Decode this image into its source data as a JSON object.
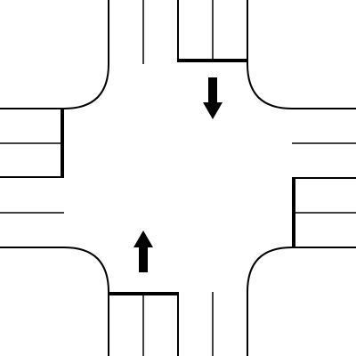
{
  "diagram": {
    "type": "four-way intersection",
    "colors": {
      "background": "#ffffff",
      "line": "#000000"
    },
    "approaches": [
      {
        "id": "north",
        "lanes": 2,
        "stop_line": true,
        "arrow": "down"
      },
      {
        "id": "south",
        "lanes": 2,
        "stop_line": true,
        "arrow": "up"
      },
      {
        "id": "west",
        "lanes": 2,
        "stop_line": true,
        "arrow": null
      },
      {
        "id": "east",
        "lanes": 2,
        "stop_line": true,
        "arrow": null
      }
    ]
  }
}
